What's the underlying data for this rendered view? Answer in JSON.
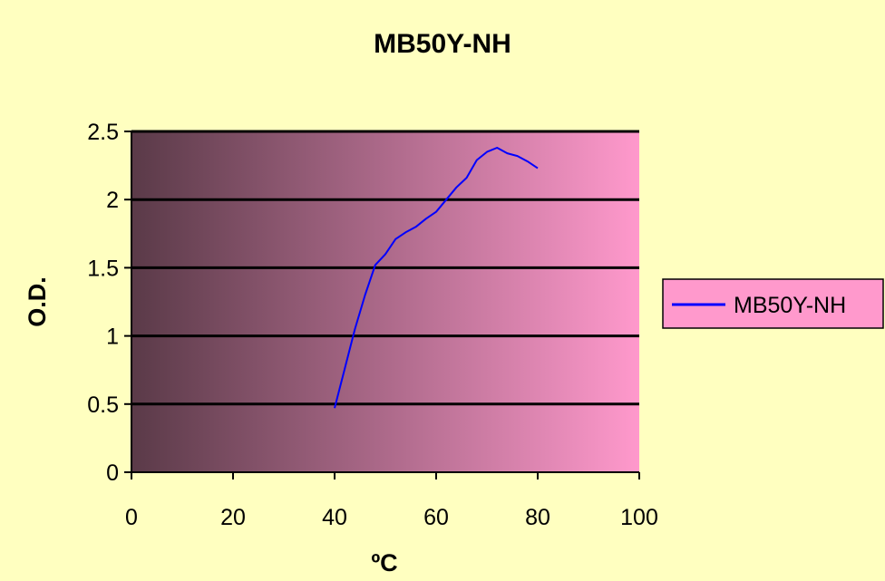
{
  "chart_data": {
    "type": "line",
    "title": "MB50Y-NH",
    "xlabel": "ºC",
    "ylabel": "O.D.",
    "xlim": [
      0,
      100
    ],
    "ylim": [
      0,
      2.5
    ],
    "x_ticks": [
      0,
      20,
      40,
      60,
      80,
      100
    ],
    "y_ticks": [
      0,
      0.5,
      1,
      1.5,
      2,
      2.5
    ],
    "x_tick_labels": [
      "0",
      "20",
      "40",
      "60",
      "80",
      "100"
    ],
    "y_tick_labels": [
      "0",
      "0.5",
      "1",
      "1.5",
      "2",
      "2.5"
    ],
    "grid": "horizontal",
    "legend": {
      "placement": "right"
    },
    "series": [
      {
        "name": "MB50Y-NH",
        "color": "#0000FF",
        "x": [
          40,
          42,
          44,
          46,
          48,
          50,
          52,
          54,
          56,
          58,
          60,
          62,
          64,
          66,
          68,
          70,
          72,
          74,
          76,
          78,
          80
        ],
        "y": [
          0.47,
          0.76,
          1.05,
          1.3,
          1.52,
          1.6,
          1.71,
          1.76,
          1.8,
          1.86,
          1.91,
          2.0,
          2.09,
          2.16,
          2.29,
          2.35,
          2.38,
          2.34,
          2.32,
          2.28,
          2.23
        ]
      }
    ]
  },
  "colors": {
    "page_background": "#FFFFC0",
    "plot_gradient_start": "#5A3A48",
    "plot_gradient_end": "#FF99CC",
    "legend_background": "#FF99CC",
    "grid": "#000000",
    "axis": "#000000"
  }
}
